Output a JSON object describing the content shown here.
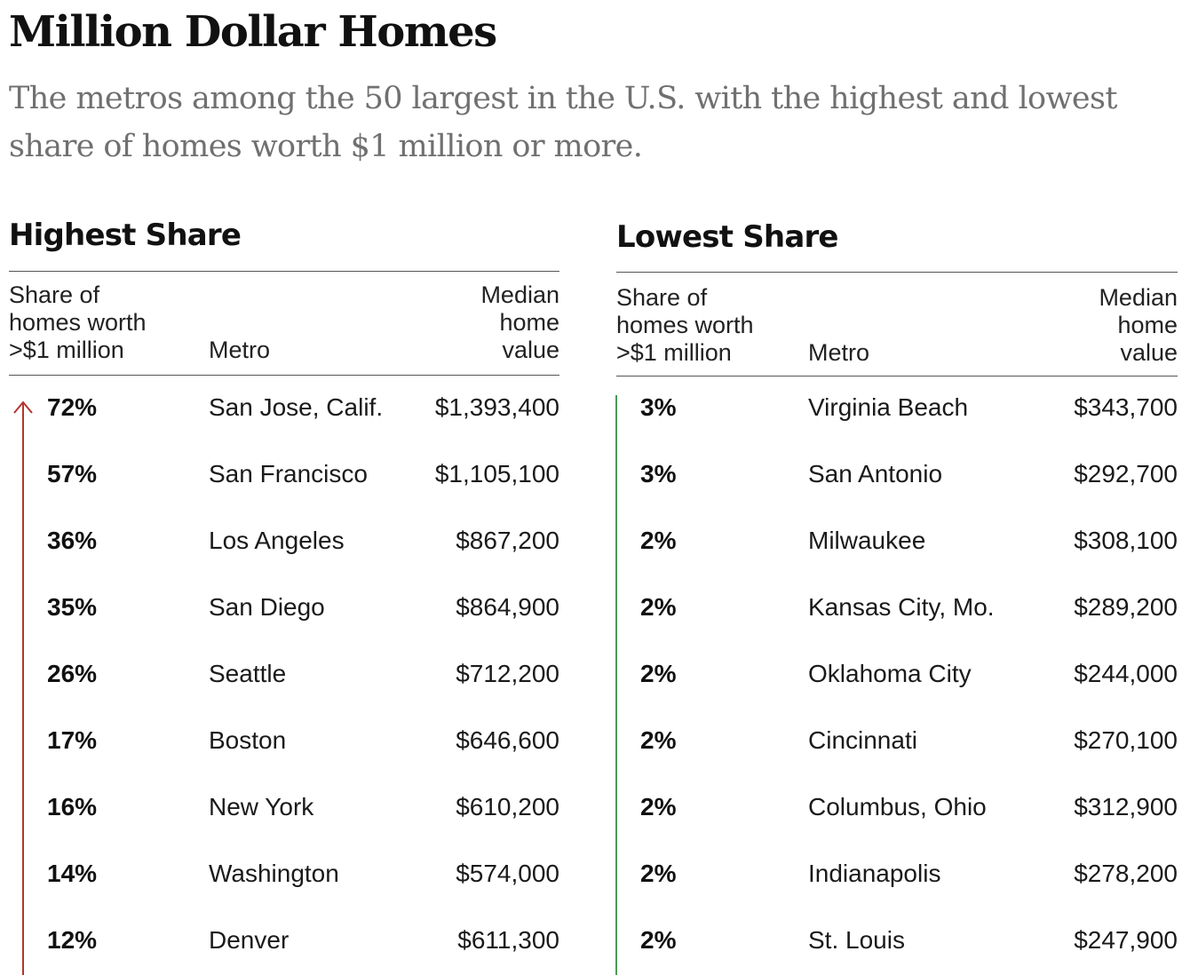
{
  "header": {
    "title": "Million Dollar Homes",
    "subtitle": "The metros among the 50 largest in the U.S. with the highest and lowest share of homes worth $1 million or more."
  },
  "colors": {
    "text": "#121212",
    "subtitle": "#707070",
    "highest_accent": "#b5342f",
    "lowest_accent": "#4a9a57"
  },
  "chart_data": [
    {
      "type": "table",
      "title": "Highest Share",
      "columns": [
        "Share of\nhomes worth\n>$1 million",
        "Metro",
        "Median\nhome\nvalue"
      ],
      "trend_icon": "up-arrow-icon",
      "rows": [
        {
          "share": "72%",
          "metro": "San Jose, Calif.",
          "median": "$1,393,400"
        },
        {
          "share": "57%",
          "metro": "San Francisco",
          "median": "$1,105,100"
        },
        {
          "share": "36%",
          "metro": "Los Angeles",
          "median": "$867,200"
        },
        {
          "share": "35%",
          "metro": "San Diego",
          "median": "$864,900"
        },
        {
          "share": "26%",
          "metro": "Seattle",
          "median": "$712,200"
        },
        {
          "share": "17%",
          "metro": "Boston",
          "median": "$646,600"
        },
        {
          "share": "16%",
          "metro": "New York",
          "median": "$610,200"
        },
        {
          "share": "14%",
          "metro": "Washington",
          "median": "$574,000"
        },
        {
          "share": "12%",
          "metro": "Denver",
          "median": "$611,300"
        }
      ]
    },
    {
      "type": "table",
      "title": "Lowest Share",
      "columns": [
        "Share of\nhomes worth\n>$1 million",
        "Metro",
        "Median\nhome\nvalue"
      ],
      "trend_icon": "vertical-line-icon",
      "rows": [
        {
          "share": "3%",
          "metro": "Virginia Beach",
          "median": "$343,700"
        },
        {
          "share": "3%",
          "metro": "San Antonio",
          "median": "$292,700"
        },
        {
          "share": "2%",
          "metro": "Milwaukee",
          "median": "$308,100"
        },
        {
          "share": "2%",
          "metro": "Kansas City, Mo.",
          "median": "$289,200"
        },
        {
          "share": "2%",
          "metro": "Oklahoma City",
          "median": "$244,000"
        },
        {
          "share": "2%",
          "metro": "Cincinnati",
          "median": "$270,100"
        },
        {
          "share": "2%",
          "metro": "Columbus, Ohio",
          "median": "$312,900"
        },
        {
          "share": "2%",
          "metro": "Indianapolis",
          "median": "$278,200"
        },
        {
          "share": "2%",
          "metro": "St. Louis",
          "median": "$247,900"
        }
      ]
    }
  ]
}
